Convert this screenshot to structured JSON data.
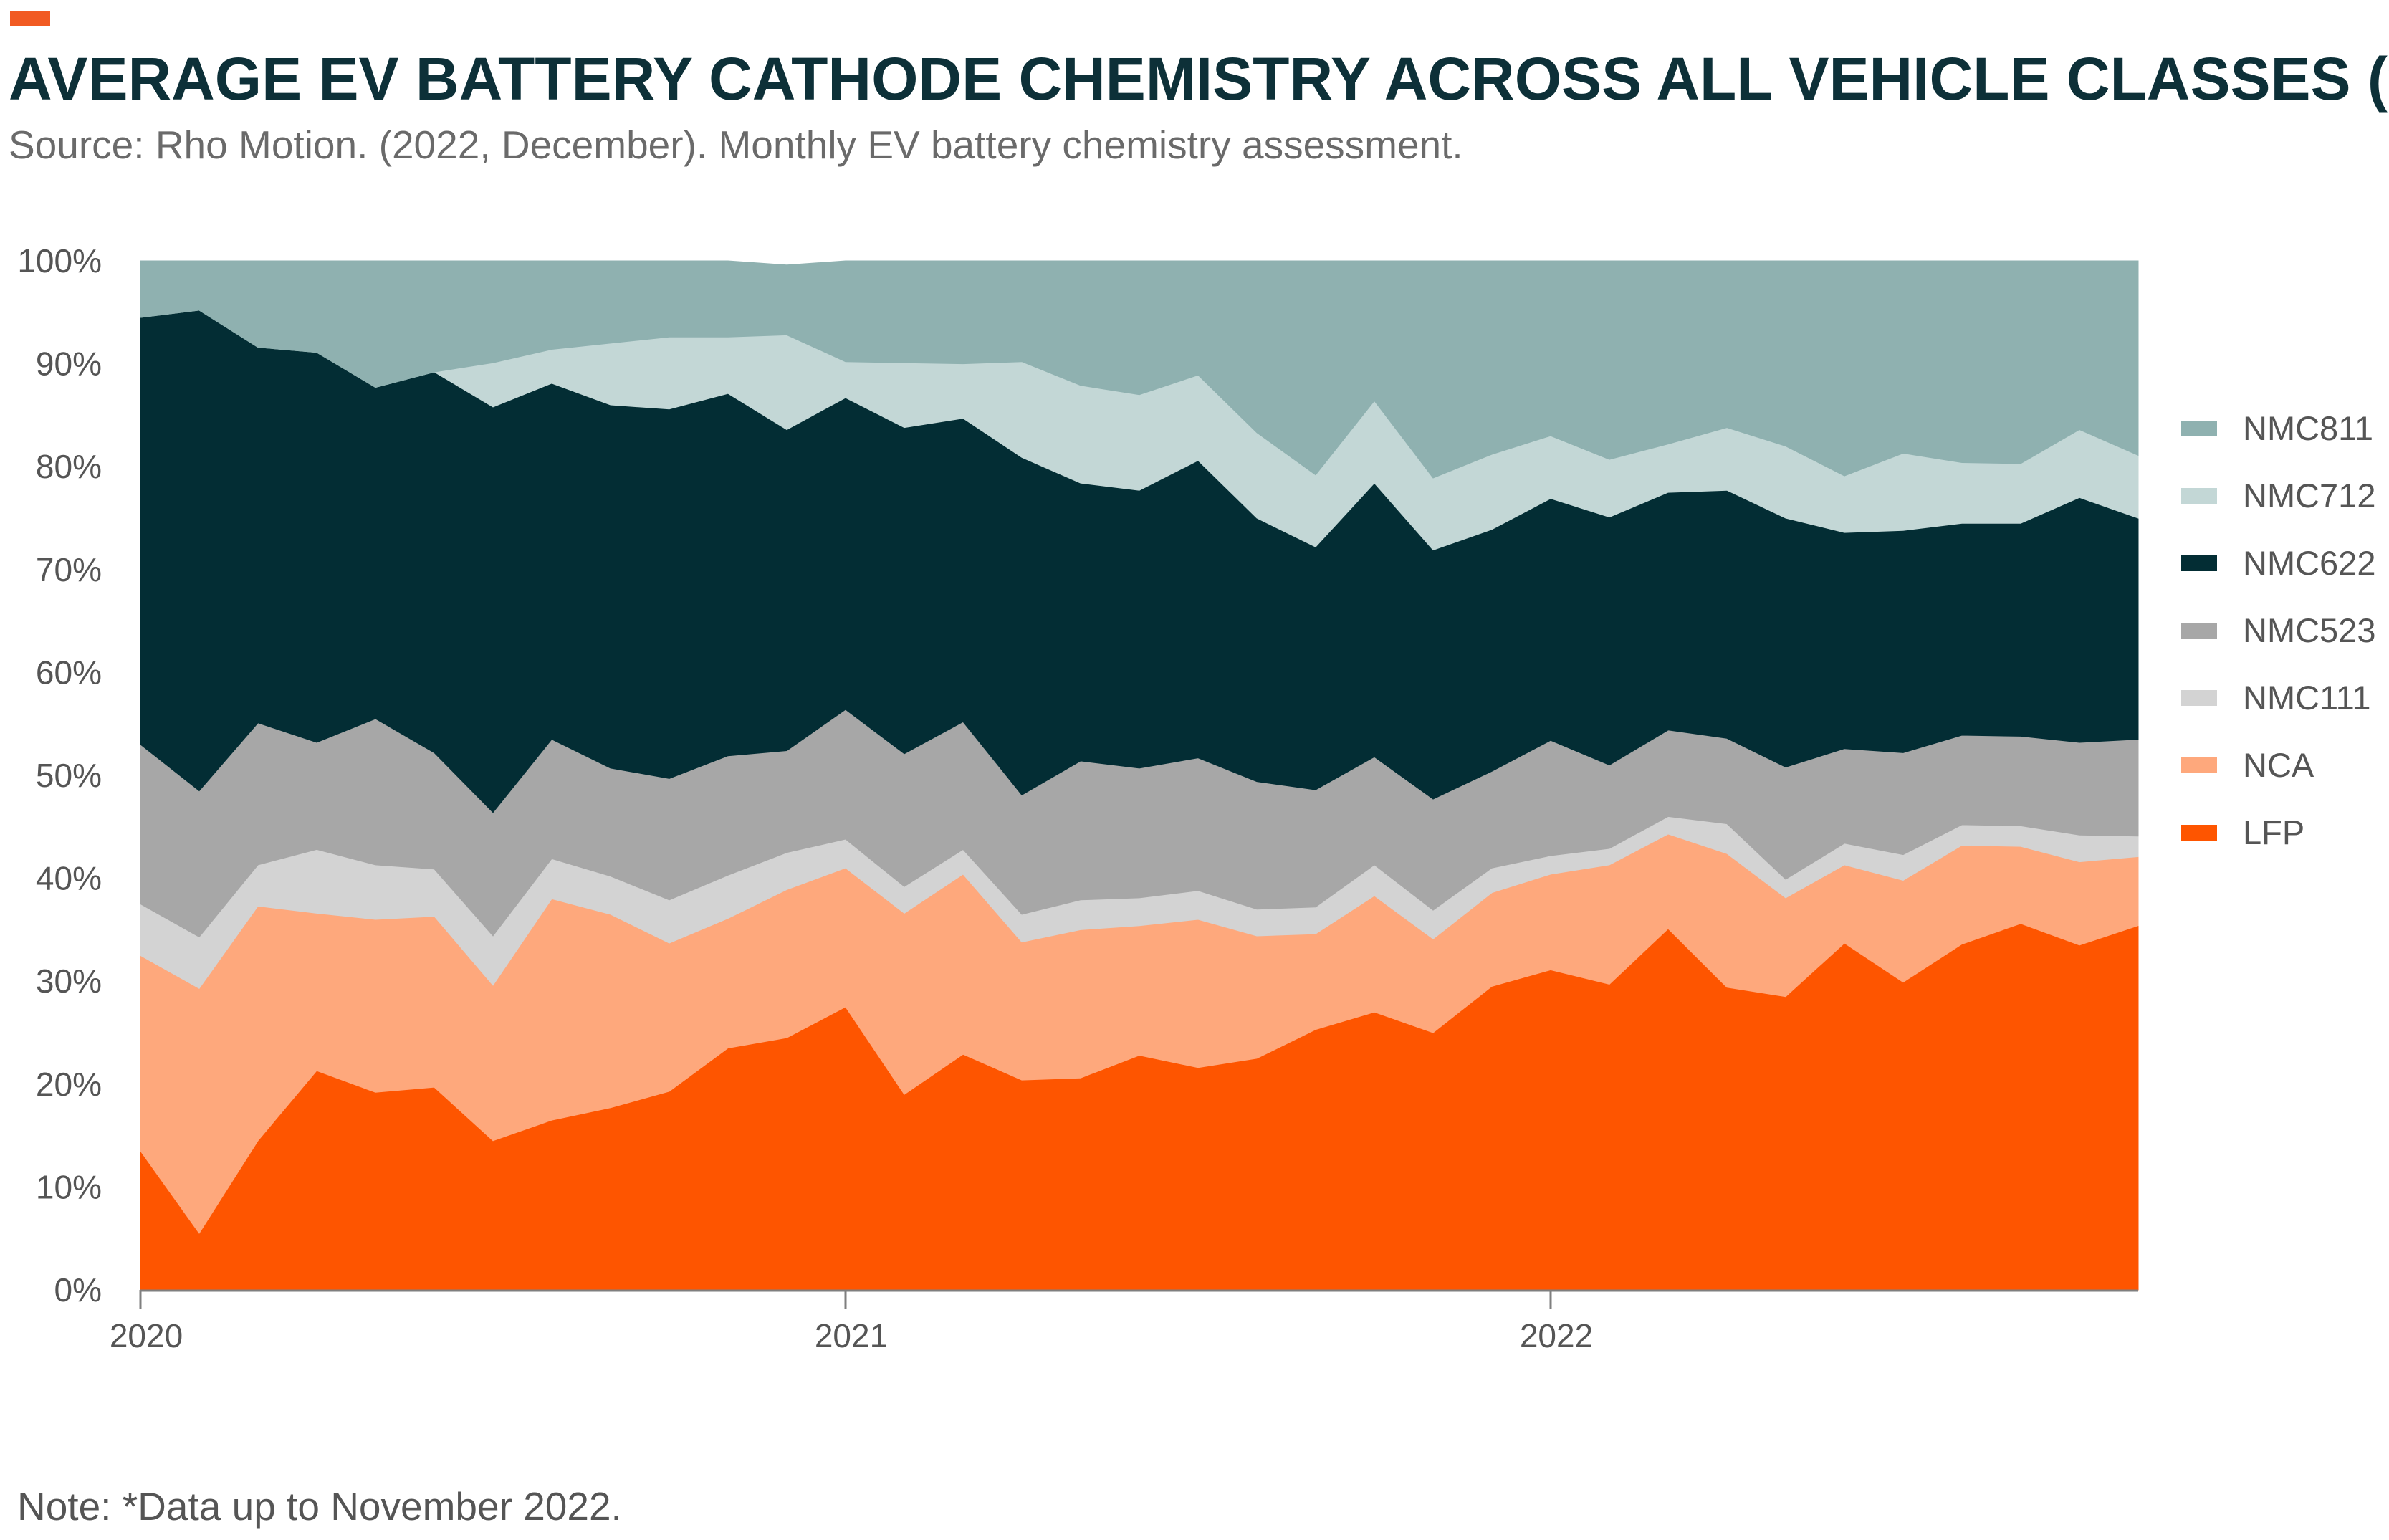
{
  "header": {
    "title": "AVERAGE EV BATTERY CATHODE CHEMISTRY ACROSS ALL VEHICLE CLASSES (%).",
    "subtitle": "Source: Rho Motion. (2022, December). Monthly EV battery chemistry assessment.",
    "accent_color": "#f15a22"
  },
  "footer": {
    "note": "Note: *Data up to November 2022."
  },
  "chart_data": {
    "type": "area",
    "stacked": true,
    "x": [
      "2020-01",
      "2020-02",
      "2020-03",
      "2020-04",
      "2020-05",
      "2020-06",
      "2020-07",
      "2020-08",
      "2020-09",
      "2020-10",
      "2020-11",
      "2020-12",
      "2021-01",
      "2021-02",
      "2021-03",
      "2021-04",
      "2021-05",
      "2021-06",
      "2021-07",
      "2021-08",
      "2021-09",
      "2021-10",
      "2021-11",
      "2021-12",
      "2022-01",
      "2022-02",
      "2022-03",
      "2022-04",
      "2022-05",
      "2022-06",
      "2022-07",
      "2022-08",
      "2022-09",
      "2022-10",
      "2022-11"
    ],
    "x_tick_labels": [
      "2020",
      "2021",
      "2022"
    ],
    "y_tick_labels": [
      "0%",
      "10%",
      "20%",
      "30%",
      "40%",
      "50%",
      "60%",
      "70%",
      "80%",
      "90%",
      "100%"
    ],
    "ylim": [
      0,
      100
    ],
    "legend_position": "right",
    "series": [
      {
        "name": "LFP",
        "color": "#fe5500",
        "values": [
          13.5,
          5.5,
          14.5,
          21.3,
          19.2,
          19.7,
          14.5,
          16.5,
          17.7,
          19.3,
          23.5,
          24.5,
          27.5,
          19.0,
          22.9,
          20.4,
          20.6,
          22.8,
          21.6,
          22.5,
          25.3,
          27.0,
          25.0,
          29.5,
          31.1,
          29.7,
          35.1,
          29.4,
          28.5,
          33.7,
          29.9,
          33.6,
          35.6,
          33.5,
          35.4
        ]
      },
      {
        "name": "NCA",
        "color": "#fea87c",
        "values": [
          19.0,
          23.8,
          22.8,
          15.3,
          16.8,
          16.6,
          15.1,
          21.5,
          18.8,
          14.4,
          12.6,
          14.4,
          13.5,
          17.6,
          17.5,
          13.4,
          14.4,
          12.6,
          14.4,
          11.9,
          9.3,
          11.3,
          9.1,
          9.1,
          9.3,
          11.6,
          9.2,
          13.0,
          9.6,
          7.6,
          9.9,
          9.6,
          7.5,
          8.1,
          6.7
        ]
      },
      {
        "name": "NMC111",
        "color": "#d3d3d3",
        "values": [
          5.0,
          5.0,
          4.0,
          6.2,
          5.3,
          4.6,
          4.8,
          3.9,
          3.7,
          4.2,
          4.2,
          3.6,
          2.8,
          2.6,
          2.4,
          2.7,
          2.9,
          2.7,
          2.8,
          2.6,
          2.6,
          3.0,
          2.8,
          2.4,
          1.8,
          1.6,
          1.7,
          2.9,
          1.8,
          2.1,
          2.5,
          2.0,
          2.0,
          2.6,
          2.0
        ]
      },
      {
        "name": "NMC523",
        "color": "#a7a7a7",
        "values": [
          15.5,
          14.2,
          13.8,
          10.4,
          14.2,
          11.3,
          12.0,
          11.6,
          10.5,
          11.8,
          11.6,
          9.9,
          12.6,
          12.9,
          12.4,
          11.6,
          13.5,
          12.6,
          12.9,
          12.4,
          11.4,
          10.5,
          10.8,
          9.4,
          11.2,
          8.1,
          8.4,
          8.3,
          10.9,
          9.2,
          9.9,
          8.7,
          8.7,
          9.0,
          9.4
        ]
      },
      {
        "name": "NMC622",
        "color": "#032d34",
        "values": [
          41.5,
          46.7,
          36.5,
          37.9,
          32.2,
          37.0,
          39.4,
          34.6,
          35.3,
          35.9,
          35.2,
          31.2,
          30.3,
          31.7,
          29.5,
          32.8,
          27.0,
          27.0,
          28.9,
          25.6,
          23.6,
          26.6,
          24.2,
          23.5,
          23.5,
          24.1,
          23.1,
          24.1,
          24.2,
          21.0,
          21.6,
          20.6,
          20.7,
          23.8,
          21.5
        ]
      },
      {
        "name": "NMC712",
        "color": "#c3d7d6",
        "values": [
          0,
          0,
          0,
          0,
          0,
          0,
          4.3,
          3.3,
          6.0,
          7.0,
          5.5,
          9.2,
          3.5,
          6.3,
          5.3,
          9.3,
          9.5,
          9.3,
          8.3,
          8.3,
          7.0,
          8.0,
          7.0,
          7.3,
          6.1,
          5.6,
          4.7,
          6.1,
          7.0,
          5.5,
          7.5,
          5.9,
          5.8,
          6.6,
          6.1
        ]
      },
      {
        "name": "NMC811",
        "color": "#8fb1b0",
        "values": [
          5.5,
          4.8,
          8.4,
          8.9,
          12.3,
          10.8,
          9.9,
          8.6,
          8.0,
          7.4,
          7.4,
          6.8,
          9.8,
          9.9,
          10.0,
          9.8,
          12.1,
          13.0,
          11.1,
          16.7,
          20.8,
          13.6,
          21.1,
          18.8,
          17.0,
          19.3,
          17.8,
          16.2,
          18.0,
          20.9,
          18.7,
          19.6,
          19.7,
          16.4,
          18.9
        ]
      }
    ]
  }
}
